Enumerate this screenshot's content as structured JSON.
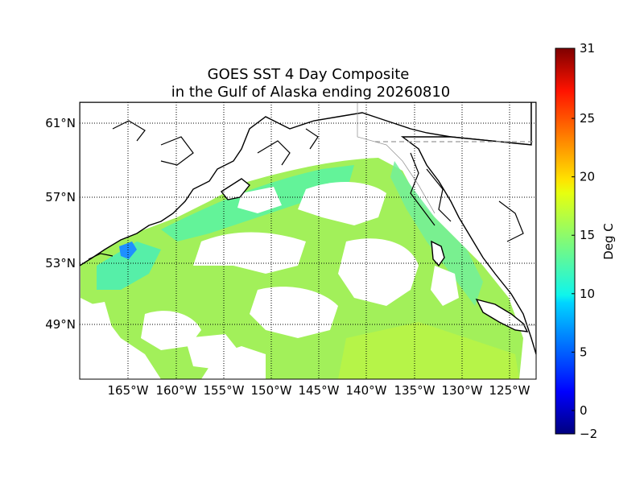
{
  "title_line1": "GOES SST 4 Day Composite",
  "title_line2": "in the Gulf of Alaska ending 20260810",
  "map": {
    "lon_range": [
      -170,
      -122
    ],
    "lat_range": [
      46.5,
      62.2
    ],
    "grid": "dotted",
    "lon_ticks": [
      {
        "value": -165,
        "label": "165°W"
      },
      {
        "value": -160,
        "label": "160°W"
      },
      {
        "value": -155,
        "label": "155°W"
      },
      {
        "value": -150,
        "label": "150°W"
      },
      {
        "value": -145,
        "label": "145°W"
      },
      {
        "value": -140,
        "label": "140°W"
      },
      {
        "value": -135,
        "label": "135°W"
      },
      {
        "value": -130,
        "label": "130°W"
      },
      {
        "value": -125,
        "label": "125°W"
      }
    ],
    "lat_ticks": [
      {
        "value": 61,
        "label": "61°N"
      },
      {
        "value": 57,
        "label": "57°N"
      },
      {
        "value": 53,
        "label": "53°N"
      },
      {
        "value": 49,
        "label": "49°N"
      }
    ],
    "land_color": "#ffffff",
    "coast_color": "#000000",
    "border_color": "#999999"
  },
  "colorbar": {
    "label": "Deg C",
    "min": -2,
    "max": 31,
    "ticks": [
      {
        "value": -2,
        "label": "−2"
      },
      {
        "value": 0,
        "label": "0"
      },
      {
        "value": 5,
        "label": "5"
      },
      {
        "value": 10,
        "label": "10"
      },
      {
        "value": 15,
        "label": "15"
      },
      {
        "value": 20,
        "label": "20"
      },
      {
        "value": 25,
        "label": "25"
      },
      {
        "value": 31,
        "label": "31"
      }
    ],
    "colormap": "jet"
  }
}
